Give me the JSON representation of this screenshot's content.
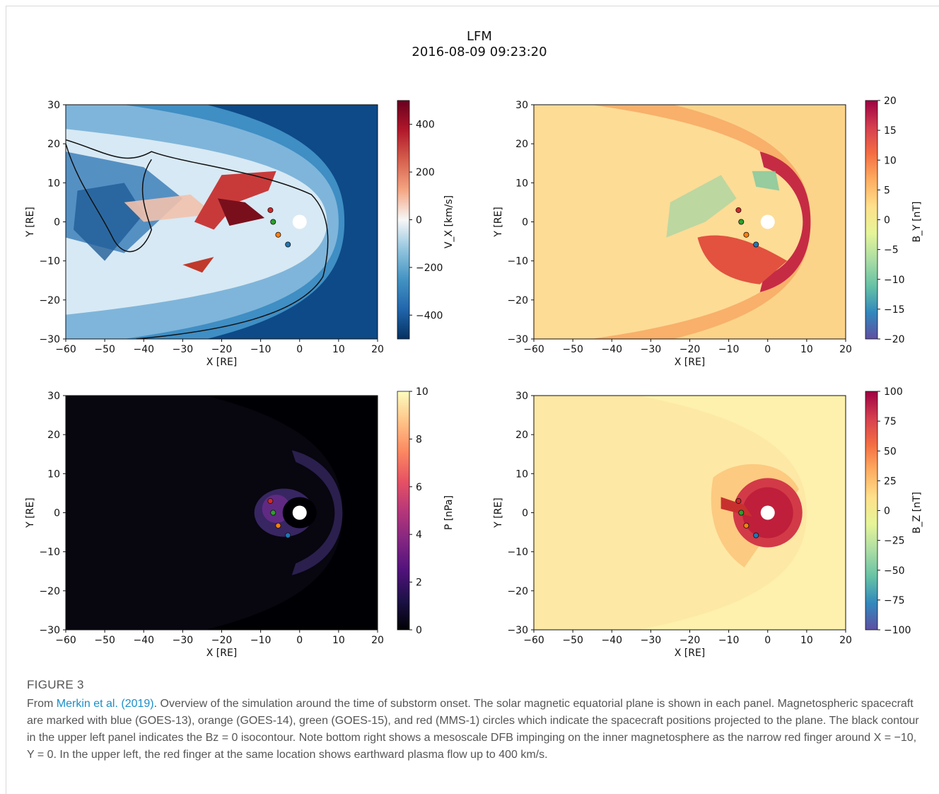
{
  "figure": {
    "title_line1": "LFM",
    "title_line2": "2016-08-09  09:23:20",
    "label": "FIGURE 3",
    "caption_link": "Merkin et al. (2019)",
    "caption_prefix": "From ",
    "caption_text": ". Overview of the simulation around the time of substorm onset. The solar magnetic equatorial plane is shown in each panel. Magnetospheric spacecraft are marked with blue (GOES-13), orange (GOES-14), green (GOES-15), and red (MMS-1) circles which indicate the spacecraft positions projected to the plane. The black contour in the upper left panel indicates the Bz = 0 isocontour. Note bottom right shows a mesoscale DFB impinging on the inner magnetosphere as the narrow red finger around X = −10, Y = 0. In the upper left, the red finger at the same location shows earthward plasma flow up to 400 km/s."
  },
  "chart_data": [
    {
      "type": "heatmap",
      "panel": "top-left",
      "xlabel": "X [RE]",
      "ylabel": "Y [RE]",
      "xlim": [
        -60,
        20
      ],
      "ylim": [
        -30,
        30
      ],
      "xticks": [
        "−60",
        "−50",
        "−40",
        "−30",
        "−20",
        "−10",
        "0",
        "10",
        "20"
      ],
      "yticks": [
        "−30",
        "−20",
        "−10",
        "0",
        "10",
        "20",
        "30"
      ],
      "colorbar_label": "V_X [km/s]",
      "colorbar_ticks": [
        "400",
        "200",
        "0",
        "−200",
        "−400"
      ],
      "colorbar_range": [
        -500,
        500
      ],
      "colormap": [
        "#053061",
        "#2166ac",
        "#4393c3",
        "#92c5de",
        "#f7f7f7",
        "#f4a582",
        "#d6604d",
        "#b2182b",
        "#67001f"
      ],
      "contour": "Bz = 0",
      "spacecraft": [
        {
          "name": "MMS-1",
          "color": "#d62728",
          "x": -7.5,
          "y": 3
        },
        {
          "name": "GOES-15",
          "color": "#2ca02c",
          "x": -6.8,
          "y": 0
        },
        {
          "name": "GOES-14",
          "color": "#ff7f0e",
          "x": -5.5,
          "y": -3.3
        },
        {
          "name": "GOES-13",
          "color": "#1f77b4",
          "x": -3,
          "y": -5.8
        }
      ]
    },
    {
      "type": "heatmap",
      "panel": "top-right",
      "xlabel": "X [RE]",
      "ylabel": "Y [RE]",
      "xlim": [
        -60,
        20
      ],
      "ylim": [
        -30,
        30
      ],
      "xticks": [
        "−60",
        "−50",
        "−40",
        "−30",
        "−20",
        "−10",
        "0",
        "10",
        "20"
      ],
      "yticks": [
        "−30",
        "−20",
        "−10",
        "0",
        "10",
        "20",
        "30"
      ],
      "colorbar_label": "B_Y [nT]",
      "colorbar_ticks": [
        "20",
        "15",
        "10",
        "5",
        "0",
        "−5",
        "−10",
        "−15",
        "−20"
      ],
      "colorbar_range": [
        -20,
        20
      ],
      "colormap": [
        "#5e4fa2",
        "#3288bd",
        "#66c2a5",
        "#abdda4",
        "#e6f598",
        "#fee08b",
        "#fdae61",
        "#f46d43",
        "#d53e4f",
        "#9e0142"
      ],
      "spacecraft": [
        {
          "name": "MMS-1",
          "color": "#d62728",
          "x": -7.5,
          "y": 3
        },
        {
          "name": "GOES-15",
          "color": "#2ca02c",
          "x": -6.8,
          "y": 0
        },
        {
          "name": "GOES-14",
          "color": "#ff7f0e",
          "x": -5.5,
          "y": -3.3
        },
        {
          "name": "GOES-13",
          "color": "#1f77b4",
          "x": -3,
          "y": -5.8
        }
      ]
    },
    {
      "type": "heatmap",
      "panel": "bottom-left",
      "xlabel": "X [RE]",
      "ylabel": "Y [RE]",
      "xlim": [
        -60,
        20
      ],
      "ylim": [
        -30,
        30
      ],
      "xticks": [
        "−60",
        "−50",
        "−40",
        "−30",
        "−20",
        "−10",
        "0",
        "10",
        "20"
      ],
      "yticks": [
        "−30",
        "−20",
        "−10",
        "0",
        "10",
        "20",
        "30"
      ],
      "colorbar_label": "P [nPa]",
      "colorbar_ticks": [
        "10",
        "8",
        "6",
        "4",
        "2",
        "0"
      ],
      "colorbar_range": [
        0,
        10
      ],
      "colormap": [
        "#000004",
        "#1d1147",
        "#51127c",
        "#832681",
        "#b73779",
        "#e75263",
        "#fc8961",
        "#fec488",
        "#fcfdbf"
      ],
      "spacecraft": [
        {
          "name": "MMS-1",
          "color": "#d62728",
          "x": -7.5,
          "y": 3
        },
        {
          "name": "GOES-15",
          "color": "#2ca02c",
          "x": -6.8,
          "y": 0
        },
        {
          "name": "GOES-14",
          "color": "#ff7f0e",
          "x": -5.5,
          "y": -3.3
        },
        {
          "name": "GOES-13",
          "color": "#1f77b4",
          "x": -3,
          "y": -5.8
        }
      ]
    },
    {
      "type": "heatmap",
      "panel": "bottom-right",
      "xlabel": "X [RE]",
      "ylabel": "Y [RE]",
      "xlim": [
        -60,
        20
      ],
      "ylim": [
        -30,
        30
      ],
      "xticks": [
        "−60",
        "−50",
        "−40",
        "−30",
        "−20",
        "−10",
        "0",
        "10",
        "20"
      ],
      "yticks": [
        "−30",
        "−20",
        "−10",
        "0",
        "10",
        "20",
        "30"
      ],
      "colorbar_label": "B_Z [nT]",
      "colorbar_ticks": [
        "100",
        "75",
        "50",
        "25",
        "0",
        "−25",
        "−50",
        "−75",
        "−100"
      ],
      "colorbar_range": [
        -100,
        100
      ],
      "colormap": [
        "#5e4fa2",
        "#3288bd",
        "#66c2a5",
        "#abdda4",
        "#e6f598",
        "#fee08b",
        "#fdae61",
        "#f46d43",
        "#d53e4f",
        "#9e0142"
      ],
      "spacecraft": [
        {
          "name": "MMS-1",
          "color": "#d62728",
          "x": -7.5,
          "y": 3
        },
        {
          "name": "GOES-15",
          "color": "#2ca02c",
          "x": -6.8,
          "y": 0
        },
        {
          "name": "GOES-14",
          "color": "#ff7f0e",
          "x": -5.5,
          "y": -3.3
        },
        {
          "name": "GOES-13",
          "color": "#1f77b4",
          "x": -3,
          "y": -5.8
        }
      ]
    }
  ]
}
